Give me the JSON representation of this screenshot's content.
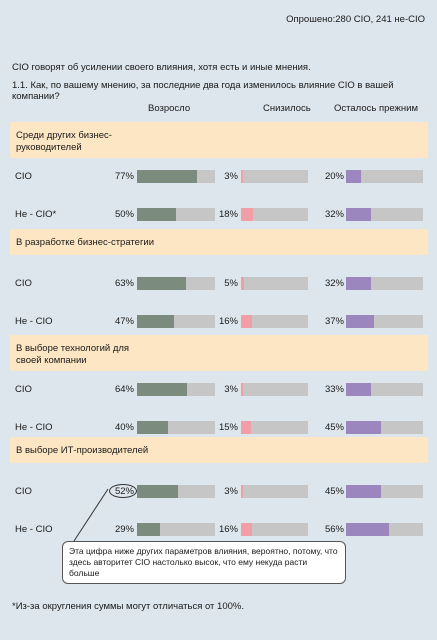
{
  "sample_text": "Опрошено:280 CIO, 241 не-CIO",
  "lead_text": "CIO говорят об усилении своего влияния, хотя есть и иные мнения.",
  "question_text": "1.1. Как, по вашему мнению, за последние два года изменилось влияние CIO в вашей компании?",
  "callout_text": "Эта цифра ниже других параметров влияния, вероятно, потому, что здесь авторитет CIO настолько высок, что ему некуда расти больше",
  "footnote_text": "*Из-за округления суммы могут отличаться от 100%.",
  "colors": {
    "up": "#7b8c7e",
    "down": "#f19ea6",
    "same": "#9c86be",
    "track": "#c6c6c6",
    "band": "#fde6c3",
    "background": "#dde6ec"
  },
  "chart_data": {
    "type": "bar",
    "columns": [
      "Возросло",
      "Снизилось",
      "Осталось прежним"
    ],
    "groups": [
      {
        "title": "Среди других бизнес-руководителей",
        "rows": [
          {
            "label": "CIO",
            "values": [
              77,
              3,
              20
            ]
          },
          {
            "label": "Не - CIO*",
            "values": [
              50,
              18,
              32
            ]
          }
        ]
      },
      {
        "title": "В разработке бизнес-стратегии",
        "rows": [
          {
            "label": "CIO",
            "values": [
              63,
              5,
              32
            ]
          },
          {
            "label": "Не - CIO",
            "values": [
              47,
              16,
              37
            ]
          }
        ]
      },
      {
        "title": "В выборе технологий для своей компании",
        "rows": [
          {
            "label": "CIO",
            "values": [
              64,
              3,
              33
            ]
          },
          {
            "label": "Не - CIO",
            "values": [
              40,
              15,
              45
            ]
          }
        ]
      },
      {
        "title": "В выборе ИТ-производителей",
        "rows": [
          {
            "label": "CIO",
            "values": [
              52,
              3,
              45
            ]
          },
          {
            "label": "Не - CIO",
            "values": [
              29,
              16,
              56
            ]
          }
        ]
      }
    ]
  }
}
